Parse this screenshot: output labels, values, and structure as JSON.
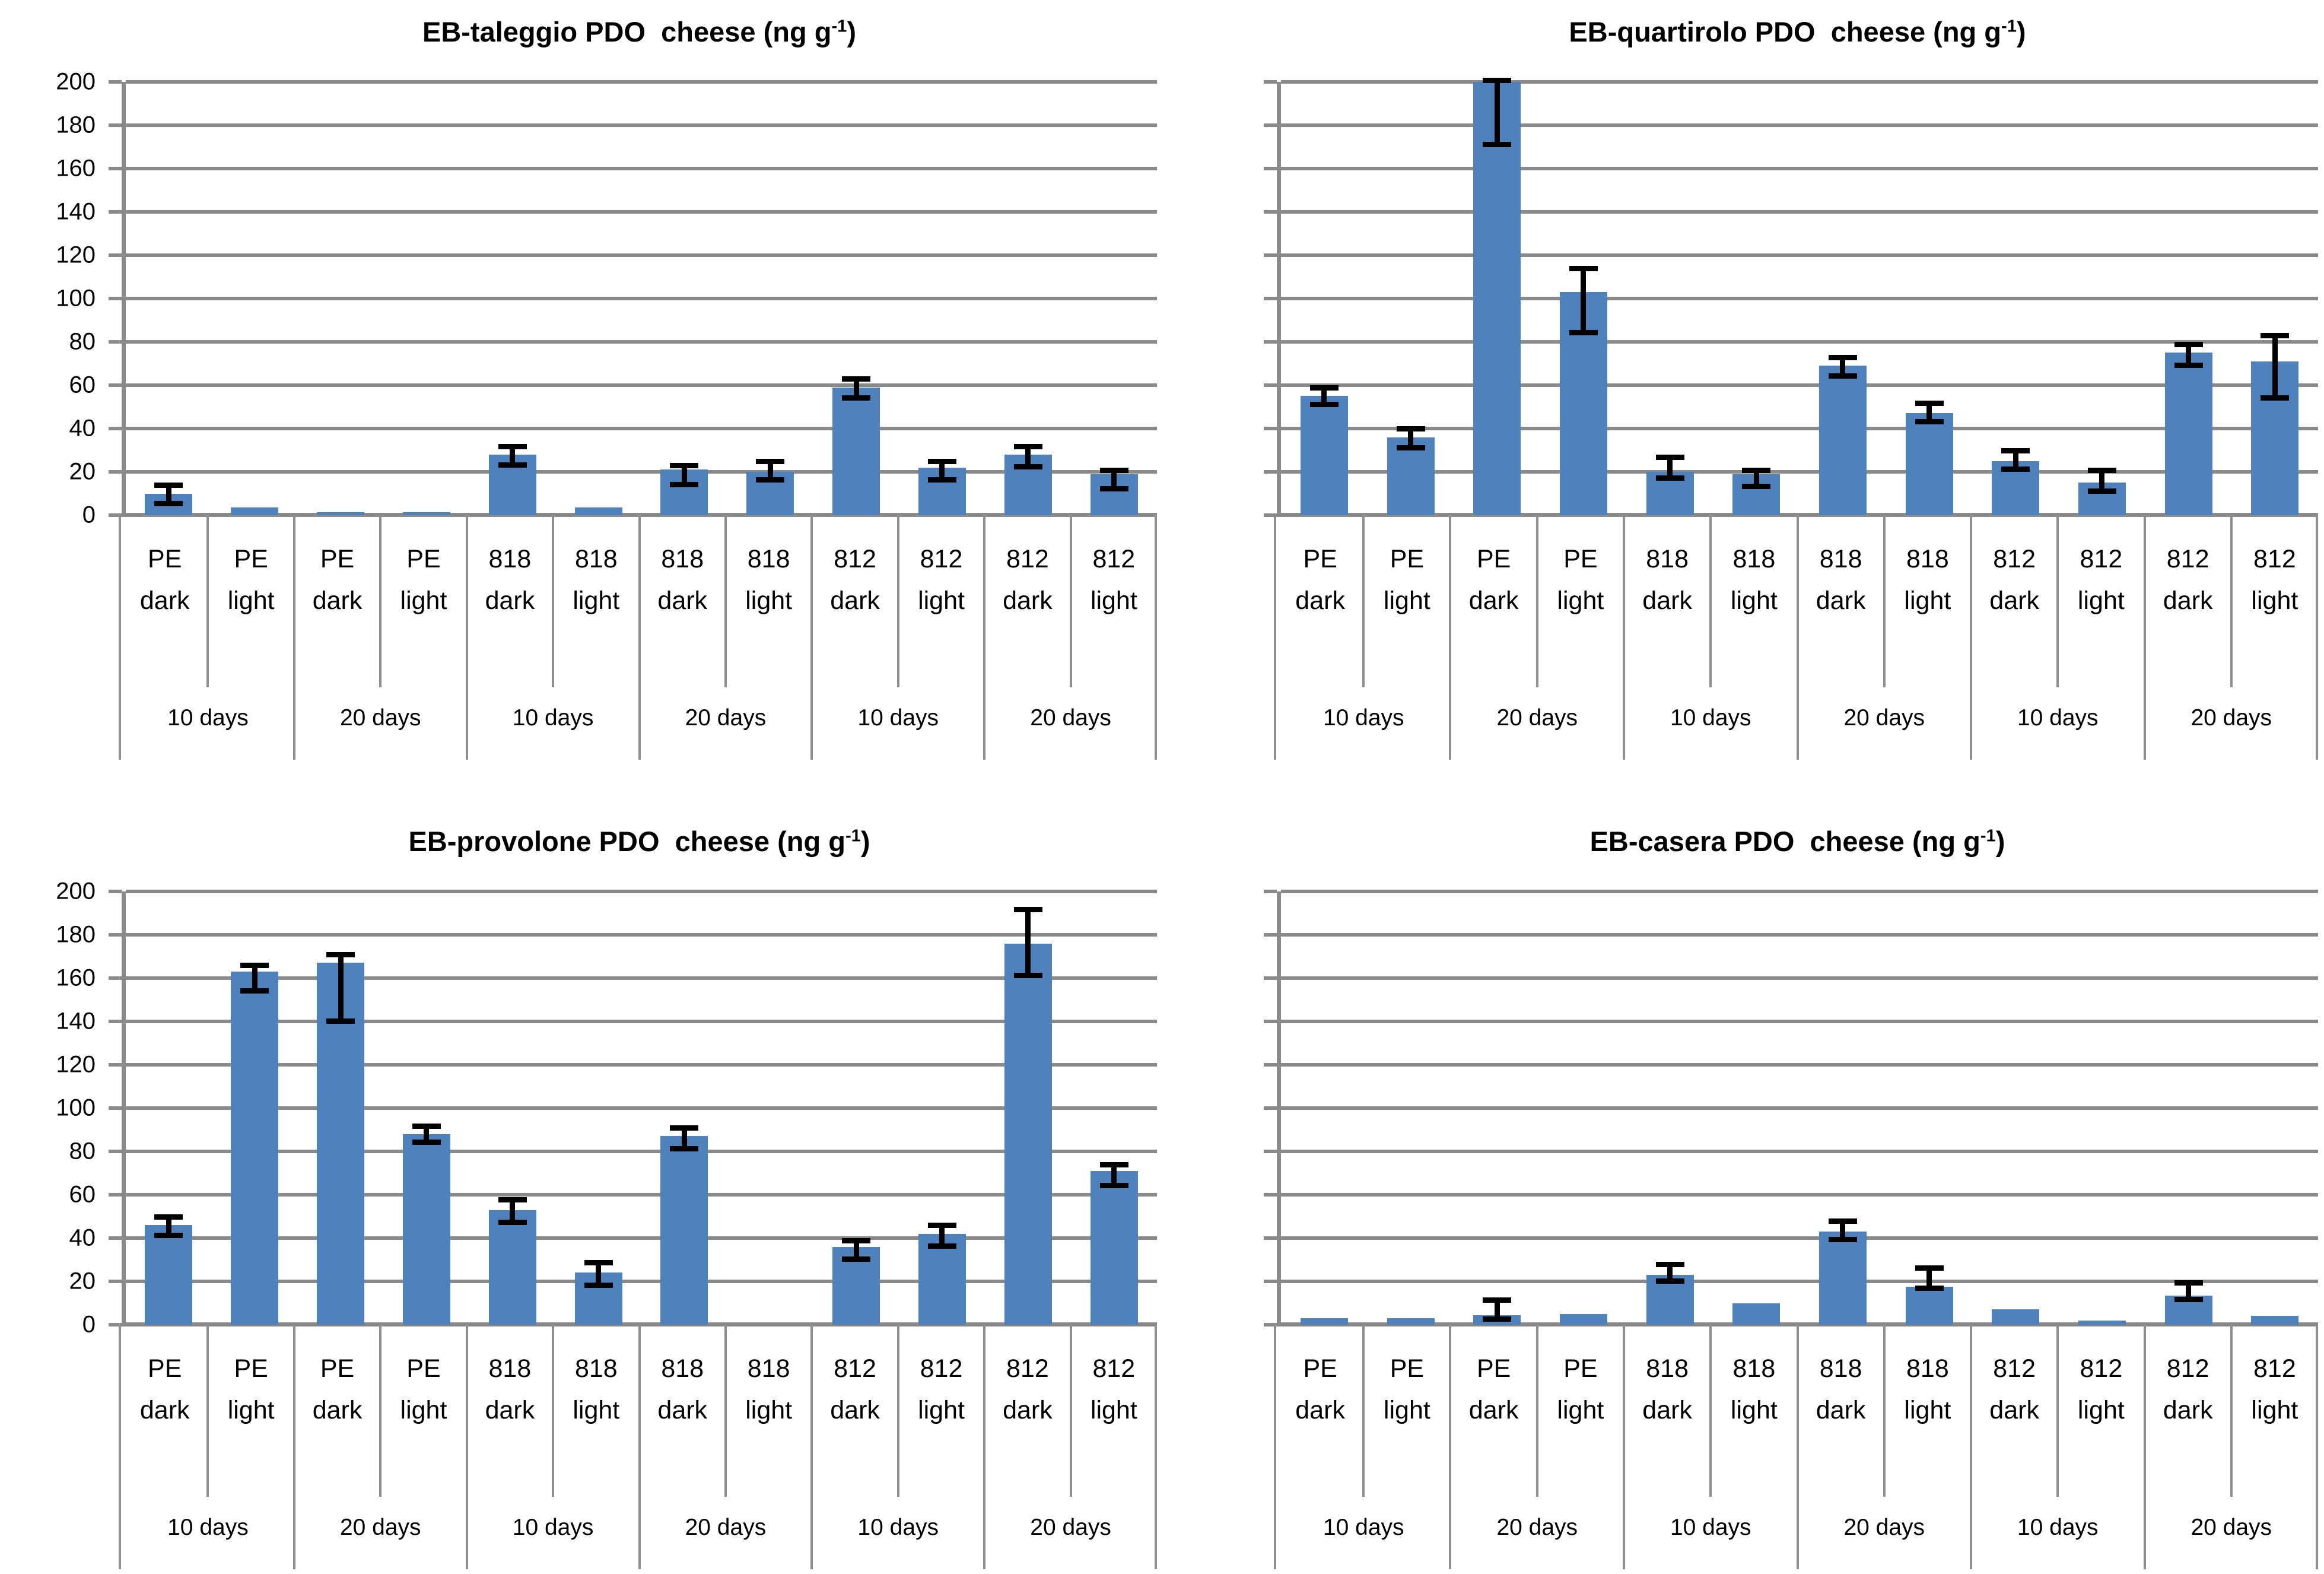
{
  "style": {
    "bar_color": "#4F81BD",
    "grid_color": "#8a8a8a",
    "error_bar_color": "#000000",
    "text_color": "#000000",
    "background": "#ffffff"
  },
  "axis": {
    "y_ticks": [
      0,
      20,
      40,
      60,
      80,
      100,
      120,
      140,
      160,
      180,
      200
    ]
  },
  "chart_data": [
    {
      "id": "taleggio",
      "type": "bar",
      "title_prefix": "EB-taleggio PDO  cheese (ng g",
      "title_sup": "-1",
      "title_suffix": ")",
      "xlabel": "",
      "ylabel": "",
      "ylim": [
        0,
        200
      ],
      "grid": true,
      "y_labels_visible": true,
      "categories": [
        {
          "top": "PE",
          "bottom": "dark"
        },
        {
          "top": "PE",
          "bottom": "light"
        },
        {
          "top": "PE",
          "bottom": "dark"
        },
        {
          "top": "PE",
          "bottom": "light"
        },
        {
          "top": "818",
          "bottom": "dark"
        },
        {
          "top": "818",
          "bottom": "light"
        },
        {
          "top": "818",
          "bottom": "dark"
        },
        {
          "top": "818",
          "bottom": "light"
        },
        {
          "top": "812",
          "bottom": "dark"
        },
        {
          "top": "812",
          "bottom": "light"
        },
        {
          "top": "812",
          "bottom": "dark"
        },
        {
          "top": "812",
          "bottom": "light"
        }
      ],
      "groups": [
        "10 days",
        "20 days",
        "10 days",
        "20 days",
        "10 days",
        "20 days"
      ],
      "values": [
        10,
        3.5,
        1.5,
        1.5,
        28,
        3.5,
        21,
        20,
        59,
        22,
        28,
        19
      ],
      "err_up": [
        5,
        0,
        0,
        0,
        5,
        0,
        3,
        6,
        5,
        4,
        5,
        3
      ],
      "err_down": [
        6,
        0,
        0,
        0,
        6,
        0,
        8,
        5,
        6,
        7,
        7,
        8
      ]
    },
    {
      "id": "quartirolo",
      "type": "bar",
      "title_prefix": "EB-quartirolo PDO  cheese (ng g",
      "title_sup": "-1",
      "title_suffix": ")",
      "xlabel": "",
      "ylabel": "",
      "ylim": [
        0,
        200
      ],
      "grid": true,
      "y_labels_visible": false,
      "categories": [
        {
          "top": "PE",
          "bottom": "dark"
        },
        {
          "top": "PE",
          "bottom": "light"
        },
        {
          "top": "PE",
          "bottom": "dark"
        },
        {
          "top": "PE",
          "bottom": "light"
        },
        {
          "top": "818",
          "bottom": "dark"
        },
        {
          "top": "818",
          "bottom": "light"
        },
        {
          "top": "818",
          "bottom": "dark"
        },
        {
          "top": "818",
          "bottom": "light"
        },
        {
          "top": "812",
          "bottom": "dark"
        },
        {
          "top": "812",
          "bottom": "light"
        },
        {
          "top": "812",
          "bottom": "dark"
        },
        {
          "top": "812",
          "bottom": "light"
        }
      ],
      "groups": [
        "10 days",
        "20 days",
        "10 days",
        "20 days",
        "10 days",
        "20 days"
      ],
      "values": [
        55,
        36,
        200,
        103,
        20,
        19,
        69,
        47,
        25,
        15,
        75,
        71
      ],
      "err_up": [
        5,
        5,
        2,
        12,
        8,
        3,
        5,
        6,
        6,
        7,
        5,
        13
      ],
      "err_down": [
        5,
        6,
        30,
        20,
        4,
        7,
        6,
        5,
        5,
        5,
        7,
        18
      ]
    },
    {
      "id": "provolone",
      "type": "bar",
      "title_prefix": "EB-provolone PDO  cheese (ng g",
      "title_sup": "-1",
      "title_suffix": ")",
      "xlabel": "",
      "ylabel": "",
      "ylim": [
        0,
        200
      ],
      "grid": true,
      "y_labels_visible": true,
      "categories": [
        {
          "top": "PE",
          "bottom": "dark"
        },
        {
          "top": "PE",
          "bottom": "light"
        },
        {
          "top": "PE",
          "bottom": "dark"
        },
        {
          "top": "PE",
          "bottom": "light"
        },
        {
          "top": "818",
          "bottom": "dark"
        },
        {
          "top": "818",
          "bottom": "light"
        },
        {
          "top": "818",
          "bottom": "dark"
        },
        {
          "top": "818",
          "bottom": "light"
        },
        {
          "top": "812",
          "bottom": "dark"
        },
        {
          "top": "812",
          "bottom": "light"
        },
        {
          "top": "812",
          "bottom": "dark"
        },
        {
          "top": "812",
          "bottom": "light"
        }
      ],
      "groups": [
        "10 days",
        "20 days",
        "10 days",
        "20 days",
        "10 days",
        "20 days"
      ],
      "values": [
        46,
        163,
        167,
        88,
        53,
        24,
        87,
        0,
        36,
        42,
        176,
        71
      ],
      "err_up": [
        5,
        4,
        5,
        5,
        6,
        6,
        5,
        0,
        4,
        5,
        17,
        4
      ],
      "err_down": [
        6,
        10,
        28,
        5,
        7,
        7,
        7,
        0,
        7,
        7,
        16,
        8
      ]
    },
    {
      "id": "casera",
      "type": "bar",
      "title_prefix": "EB-casera PDO  cheese (ng g",
      "title_sup": "-1",
      "title_suffix": ")",
      "xlabel": "",
      "ylabel": "",
      "ylim": [
        0,
        200
      ],
      "grid": true,
      "y_labels_visible": false,
      "categories": [
        {
          "top": "PE",
          "bottom": "dark"
        },
        {
          "top": "PE",
          "bottom": "light"
        },
        {
          "top": "PE",
          "bottom": "dark"
        },
        {
          "top": "PE",
          "bottom": "light"
        },
        {
          "top": "818",
          "bottom": "dark"
        },
        {
          "top": "818",
          "bottom": "light"
        },
        {
          "top": "818",
          "bottom": "dark"
        },
        {
          "top": "818",
          "bottom": "light"
        },
        {
          "top": "812",
          "bottom": "dark"
        },
        {
          "top": "812",
          "bottom": "light"
        },
        {
          "top": "812",
          "bottom": "dark"
        },
        {
          "top": "812",
          "bottom": "light"
        }
      ],
      "groups": [
        "10 days",
        "20 days",
        "10 days",
        "20 days",
        "10 days",
        "20 days"
      ],
      "values": [
        3,
        3,
        4.5,
        5,
        23,
        10,
        43,
        17.5,
        7,
        2,
        13.5,
        4
      ],
      "err_up": [
        0,
        0,
        8,
        0,
        6,
        0,
        6,
        10,
        0,
        0,
        7,
        0
      ],
      "err_down": [
        0,
        0,
        3,
        0,
        4,
        0,
        5,
        2,
        0,
        0,
        3,
        0
      ]
    }
  ]
}
